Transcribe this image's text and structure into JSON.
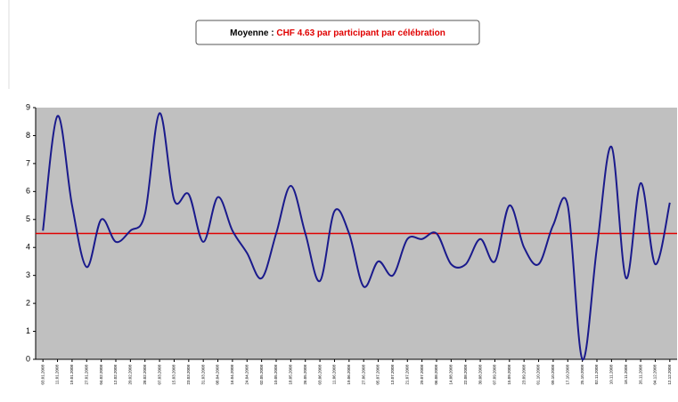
{
  "chart_data": {
    "type": "line",
    "annotation": {
      "label": "Moyenne :",
      "text": "CHF 4.63 par participant par célébration"
    },
    "categories": [
      "03.01.2008",
      "11.01.2008",
      "19.01.2008",
      "27.01.2008",
      "04.02.2008",
      "12.02.2008",
      "20.02.2008",
      "28.02.2008",
      "07.03.2008",
      "15.03.2008",
      "23.03.2008",
      "31.03.2008",
      "08.04.2008",
      "16.04.2008",
      "24.04.2008",
      "02.05.2008",
      "10.05.2008",
      "18.05.2008",
      "26.05.2008",
      "03.06.2008",
      "11.06.2008",
      "19.06.2008",
      "27.06.2008",
      "05.07.2008",
      "13.07.2008",
      "21.07.2008",
      "29.07.2008",
      "06.08.2008",
      "14.08.2008",
      "22.08.2008",
      "30.08.2008",
      "07.09.2008",
      "15.09.2008",
      "23.09.2008",
      "01.10.2008",
      "09.10.2008",
      "17.10.2008",
      "25.10.2008",
      "02.11.2008",
      "10.11.2008",
      "18.11.2008",
      "26.11.2008",
      "04.12.2008",
      "12.12.2008"
    ],
    "series": [
      {
        "color": "#1a1a8c",
        "values": [
          4.6,
          8.7,
          5.5,
          3.3,
          5.0,
          4.2,
          4.6,
          5.2,
          8.8,
          5.7,
          5.9,
          4.2,
          5.8,
          4.6,
          3.8,
          2.9,
          4.5,
          6.2,
          4.5,
          2.8,
          5.3,
          4.5,
          2.6,
          3.5,
          3.0,
          4.3,
          4.3,
          4.5,
          3.4,
          3.4,
          4.3,
          3.5,
          5.5,
          4.0,
          3.4,
          4.8,
          5.5,
          0.0,
          4.0,
          7.6,
          2.9,
          6.3,
          3.4,
          5.6
        ]
      }
    ],
    "reference_line": {
      "value": 4.5,
      "color": "#e00000"
    },
    "ylim": [
      0,
      9
    ],
    "yticks": [
      0,
      1,
      2,
      3,
      4,
      5,
      6,
      7,
      8,
      9
    ],
    "plot_background": "#c0c0c0",
    "grid": false
  }
}
